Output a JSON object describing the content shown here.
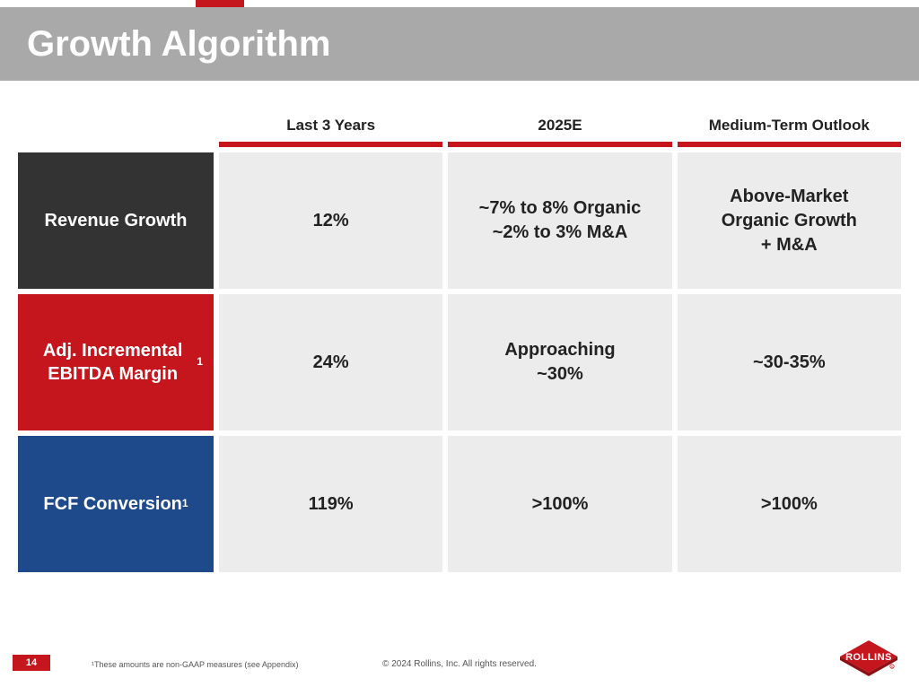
{
  "colors": {
    "brand_red": "#c4161c",
    "title_bar_bg": "#a9a9a9",
    "cell_bg": "#ececec",
    "row1_bg": "#333333",
    "row2_bg": "#c4161c",
    "row3_bg": "#1e4a8c",
    "text_dark": "#222222",
    "text_light": "#ffffff"
  },
  "title": "Growth Algorithm",
  "table": {
    "columns": [
      "Last 3 Years",
      "2025E",
      "Medium-Term Outlook"
    ],
    "rows": [
      {
        "label": "Revenue Growth",
        "superscript": "",
        "bg": "#333333",
        "cells": [
          "12%",
          "~7% to 8% Organic\n~2% to 3% M&A",
          "Above-Market\nOrganic Growth\n+ M&A"
        ]
      },
      {
        "label": "Adj. Incremental EBITDA Margin",
        "superscript": "1",
        "bg": "#c4161c",
        "cells": [
          "24%",
          "Approaching\n~30%",
          "~30-35%"
        ]
      },
      {
        "label": "FCF Conversion",
        "superscript": "1",
        "bg": "#1e4a8c",
        "cells": [
          "119%",
          ">100%",
          ">100%"
        ]
      }
    ]
  },
  "footer": {
    "page_number": "14",
    "footnote": "¹These amounts are non-GAAP measures (see Appendix)",
    "copyright": "© 2024 Rollins, Inc. All rights reserved.",
    "logo_text": "ROLLINS"
  }
}
